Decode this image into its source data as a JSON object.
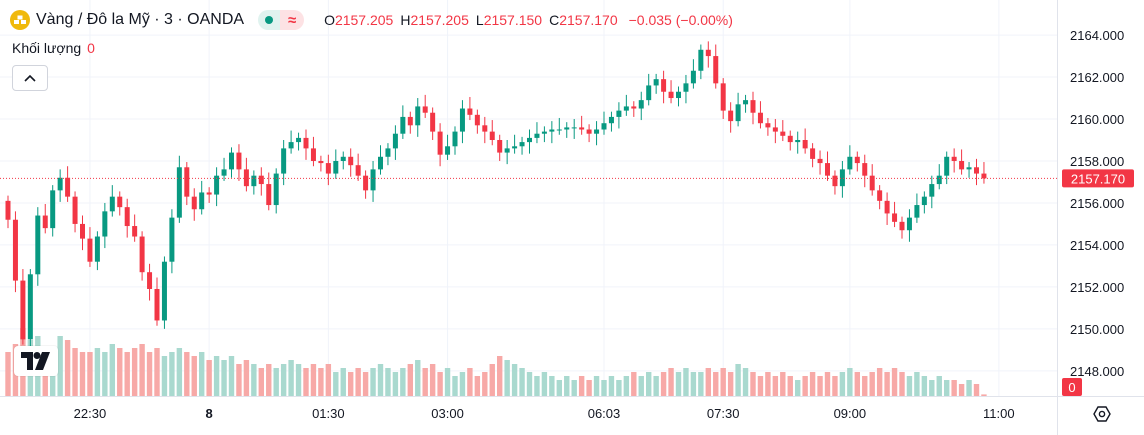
{
  "header": {
    "symbol_title": "Vàng / Đô la Mỹ · 3 · OANDA",
    "symbol_icon": "gold-bars-icon",
    "ohlc": {
      "o_label": "O",
      "o_value": "2157.205",
      "h_label": "H",
      "h_value": "2157.205",
      "l_label": "L",
      "l_value": "2157.150",
      "c_label": "C",
      "c_value": "2157.170",
      "change": "−0.035 (−0.00%)"
    }
  },
  "volume": {
    "label": "Khối lượng",
    "value": "0"
  },
  "colors": {
    "up": "#089981",
    "down": "#f23645",
    "vol_up": "#a9d9cf",
    "vol_down": "#f7a9a7",
    "price_line": "#f23645",
    "grid": "#f0f3fa"
  },
  "chart_data": {
    "type": "candlestick",
    "y_ticks": [
      "2164.000",
      "2162.000",
      "2160.000",
      "2158.000",
      "2156.000",
      "2154.000",
      "2152.000",
      "2150.000",
      "2148.000"
    ],
    "y_range": [
      2146.8,
      2165.1
    ],
    "x_ticks": [
      {
        "label": "22:30",
        "i": 11
      },
      {
        "label": "8",
        "i": 27
      },
      {
        "label": "01:30",
        "i": 43
      },
      {
        "label": "03:00",
        "i": 59
      },
      {
        "label": "06:03",
        "i": 80
      },
      {
        "label": "07:30",
        "i": 96
      },
      {
        "label": "09:00",
        "i": 113
      },
      {
        "label": "11:00",
        "i": 133
      }
    ],
    "last_price": 2157.17,
    "last_price_label": "2157.170",
    "volume_last_label": "0",
    "closes": [
      2155.2,
      2152.3,
      2149.5,
      2152.6,
      2155.4,
      2154.8,
      2156.6,
      2157.2,
      2156.3,
      2155.0,
      2154.3,
      2153.2,
      2154.4,
      2155.6,
      2156.3,
      2155.8,
      2154.9,
      2154.4,
      2152.7,
      2151.9,
      2150.4,
      2153.2,
      2155.3,
      2157.7,
      2156.3,
      2155.7,
      2156.5,
      2156.4,
      2157.3,
      2157.6,
      2158.4,
      2157.6,
      2156.8,
      2157.3,
      2156.9,
      2155.9,
      2157.4,
      2158.6,
      2158.9,
      2159.1,
      2158.6,
      2158.0,
      2157.9,
      2157.4,
      2158.0,
      2158.2,
      2157.8,
      2157.3,
      2156.6,
      2157.6,
      2158.2,
      2158.6,
      2159.3,
      2160.1,
      2159.7,
      2160.6,
      2160.3,
      2159.4,
      2158.3,
      2158.7,
      2159.4,
      2160.5,
      2160.2,
      2159.7,
      2159.4,
      2159.0,
      2158.4,
      2158.6,
      2158.7,
      2158.9,
      2159.1,
      2159.3,
      2159.4,
      2159.5,
      2159.5,
      2159.6,
      2159.6,
      2159.5,
      2159.3,
      2159.5,
      2159.8,
      2160.1,
      2160.4,
      2160.6,
      2160.5,
      2160.9,
      2161.6,
      2161.9,
      2161.3,
      2161.0,
      2161.3,
      2161.7,
      2162.3,
      2163.3,
      2163.0,
      2161.7,
      2160.4,
      2159.9,
      2160.7,
      2160.9,
      2160.3,
      2159.8,
      2159.6,
      2159.4,
      2159.2,
      2158.9,
      2159.0,
      2158.6,
      2158.1,
      2157.9,
      2157.3,
      2156.8,
      2157.6,
      2158.2,
      2157.9,
      2157.3,
      2156.6,
      2156.1,
      2155.5,
      2155.1,
      2154.7,
      2155.3,
      2155.9,
      2156.3,
      2156.9,
      2157.3,
      2158.2,
      2158.0,
      2157.6,
      2157.7,
      2157.4,
      2157.17
    ],
    "volumes": [
      0.55,
      0.65,
      0.85,
      0.7,
      0.75,
      0.6,
      0.55,
      0.75,
      0.7,
      0.6,
      0.55,
      0.55,
      0.6,
      0.55,
      0.65,
      0.6,
      0.55,
      0.6,
      0.65,
      0.55,
      0.6,
      0.5,
      0.55,
      0.6,
      0.55,
      0.5,
      0.55,
      0.45,
      0.5,
      0.45,
      0.5,
      0.4,
      0.45,
      0.4,
      0.35,
      0.4,
      0.35,
      0.4,
      0.45,
      0.4,
      0.35,
      0.4,
      0.35,
      0.4,
      0.3,
      0.35,
      0.3,
      0.35,
      0.3,
      0.35,
      0.4,
      0.35,
      0.3,
      0.35,
      0.4,
      0.45,
      0.35,
      0.4,
      0.3,
      0.35,
      0.25,
      0.3,
      0.35,
      0.25,
      0.3,
      0.4,
      0.5,
      0.45,
      0.4,
      0.35,
      0.3,
      0.25,
      0.3,
      0.25,
      0.2,
      0.25,
      0.2,
      0.25,
      0.2,
      0.25,
      0.2,
      0.25,
      0.2,
      0.25,
      0.3,
      0.25,
      0.3,
      0.25,
      0.3,
      0.35,
      0.3,
      0.35,
      0.3,
      0.3,
      0.35,
      0.3,
      0.35,
      0.3,
      0.4,
      0.35,
      0.3,
      0.25,
      0.3,
      0.25,
      0.3,
      0.25,
      0.2,
      0.25,
      0.3,
      0.25,
      0.3,
      0.25,
      0.3,
      0.35,
      0.3,
      0.25,
      0.3,
      0.35,
      0.3,
      0.35,
      0.3,
      0.25,
      0.3,
      0.25,
      0.2,
      0.25,
      0.2,
      0.2,
      0.15,
      0.2,
      0.15,
      0.02
    ]
  }
}
